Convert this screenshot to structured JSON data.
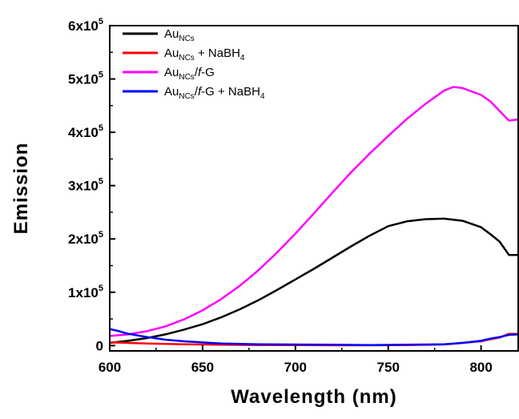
{
  "chart_data": {
    "type": "line",
    "xlabel": "Wavelength (nm)",
    "ylabel": "Emission",
    "xlim": [
      600,
      820
    ],
    "ylim": [
      -10000,
      600000
    ],
    "x_ticks": [
      600,
      650,
      700,
      750,
      800
    ],
    "y_ticks": [
      {
        "value": 0,
        "base": "0",
        "exp": ""
      },
      {
        "value": 100000,
        "base": "1x10",
        "exp": "5"
      },
      {
        "value": 200000,
        "base": "2x10",
        "exp": "5"
      },
      {
        "value": 300000,
        "base": "3x10",
        "exp": "5"
      },
      {
        "value": 400000,
        "base": "4x10",
        "exp": "5"
      },
      {
        "value": 500000,
        "base": "5x10",
        "exp": "5"
      },
      {
        "value": 600000,
        "base": "6x10",
        "exp": "5"
      }
    ],
    "grid": false,
    "legend_position": "top-left",
    "series": [
      {
        "label_main": "Au",
        "label_sub": "NCs",
        "label_rest": "",
        "label_italic": "",
        "label_tail": "",
        "label_sub2": "",
        "color": "#000000",
        "x": [
          600,
          610,
          620,
          630,
          640,
          650,
          660,
          670,
          680,
          690,
          700,
          710,
          720,
          730,
          740,
          750,
          760,
          770,
          780,
          790,
          800,
          805,
          810,
          815,
          820
        ],
        "y": [
          5000,
          9000,
          14000,
          21000,
          30000,
          40000,
          53000,
          68000,
          85000,
          104000,
          124000,
          144000,
          165000,
          186000,
          206000,
          224000,
          233000,
          237000,
          238000,
          234000,
          222000,
          209000,
          195000,
          170000,
          170000
        ]
      },
      {
        "label_main": "Au",
        "label_sub": "NCs",
        "label_rest": " + NaBH",
        "label_italic": "",
        "label_tail": "",
        "label_sub2": "4",
        "color": "#ff0000",
        "x": [
          600,
          610,
          620,
          630,
          640,
          650,
          660,
          680,
          700,
          720,
          740,
          760,
          780,
          790,
          800,
          805,
          810,
          815,
          820
        ],
        "y": [
          6000,
          5000,
          4000,
          3000,
          2500,
          2000,
          1500,
          1000,
          1000,
          500,
          500,
          1000,
          2000,
          5000,
          8000,
          12000,
          15000,
          22000,
          22000
        ]
      },
      {
        "label_main": "Au",
        "label_sub": "NCs",
        "label_rest": "/",
        "label_italic": "f",
        "label_tail": "-G",
        "label_sub2": "",
        "color": "#ff00ff",
        "x": [
          600,
          610,
          620,
          630,
          640,
          650,
          660,
          670,
          680,
          690,
          700,
          710,
          720,
          730,
          740,
          750,
          760,
          770,
          780,
          785,
          790,
          800,
          805,
          810,
          815,
          820
        ],
        "y": [
          18000,
          21000,
          27000,
          36000,
          49000,
          66000,
          87000,
          112000,
          141000,
          174000,
          210000,
          248000,
          287000,
          325000,
          360000,
          393000,
          425000,
          453000,
          478000,
          485000,
          483000,
          470000,
          458000,
          440000,
          422000,
          424000
        ]
      },
      {
        "label_main": "Au",
        "label_sub": "NCs",
        "label_rest": "/",
        "label_italic": "f",
        "label_tail": "-G  + NaBH",
        "label_sub2": "4",
        "color": "#0000ff",
        "x": [
          600,
          605,
          610,
          620,
          630,
          640,
          650,
          660,
          680,
          700,
          720,
          740,
          760,
          780,
          790,
          800,
          805,
          810,
          815,
          820
        ],
        "y": [
          31000,
          27000,
          22000,
          16000,
          11000,
          8000,
          6000,
          4000,
          2500,
          2000,
          1500,
          1000,
          1500,
          2500,
          5000,
          9000,
          13000,
          16000,
          20000,
          21000
        ]
      }
    ]
  }
}
